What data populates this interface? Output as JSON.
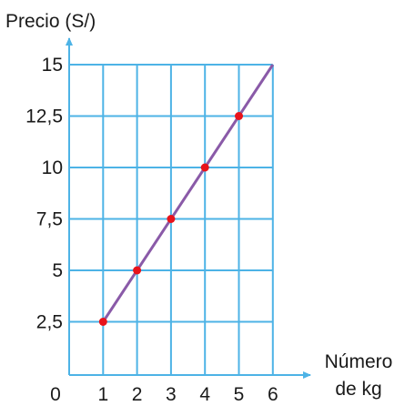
{
  "chart_data": {
    "type": "line",
    "title": "",
    "ylabel": "Precio (S/)",
    "xlabel_lines": [
      "Número",
      "de kg"
    ],
    "origin_label": "0",
    "x_ticks": [
      "1",
      "2",
      "3",
      "4",
      "5",
      "6"
    ],
    "y_ticks": [
      "2,5",
      "5",
      "7,5",
      "10",
      "12,5",
      "15"
    ],
    "xlim": [
      0,
      6
    ],
    "ylim": [
      0,
      15
    ],
    "grid": true,
    "line": {
      "x": [
        1,
        6
      ],
      "y": [
        2.5,
        15
      ]
    },
    "points": {
      "x": [
        1,
        2,
        3,
        4,
        5
      ],
      "y": [
        2.5,
        5,
        7.5,
        10,
        12.5
      ]
    },
    "colors": {
      "grid": "#4db3e6",
      "axis": "#4db3e6",
      "line": "#8a5aa8",
      "point": "#e8131b"
    }
  }
}
